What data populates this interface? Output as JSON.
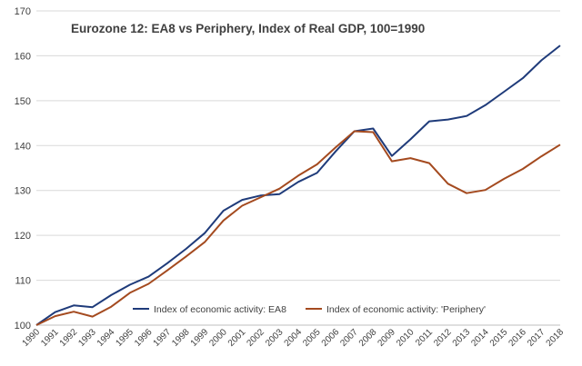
{
  "chart_data": {
    "type": "line",
    "title": "Eurozone 12: EA8 vs Periphery, Index of Real GDP, 100=1990",
    "xlabel": "",
    "ylabel": "",
    "ylim": [
      100,
      170
    ],
    "yticks": [
      100,
      110,
      120,
      130,
      140,
      150,
      160,
      170
    ],
    "grid": true,
    "legend_position": "bottom-inside",
    "categories": [
      "1990",
      "1991",
      "1992",
      "1993",
      "1994",
      "1995",
      "1996",
      "1997",
      "1998",
      "1999",
      "2000",
      "2001",
      "2002",
      "2003",
      "2004",
      "2005",
      "2006",
      "2007",
      "2008",
      "2009",
      "2010",
      "2011",
      "2012",
      "2013",
      "2014",
      "2015",
      "2016",
      "2017",
      "2018"
    ],
    "series": [
      {
        "name": "Index of economic activity: EA8",
        "color": "#1f3b7a",
        "values": [
          100,
          102.9,
          104.4,
          104.0,
          106.7,
          109.0,
          110.8,
          113.8,
          117.0,
          120.5,
          125.5,
          127.9,
          128.9,
          129.2,
          131.9,
          133.9,
          138.7,
          143.2,
          143.8,
          137.7,
          141.4,
          145.4,
          145.8,
          146.6,
          149.0,
          152.0,
          155.0,
          159.0,
          162.3
        ]
      },
      {
        "name": "Index of economic activity: 'Periphery'",
        "color": "#a44a1f",
        "values": [
          100,
          102.0,
          103.0,
          101.9,
          104.1,
          107.2,
          109.2,
          112.2,
          115.3,
          118.5,
          123.3,
          126.6,
          128.5,
          130.4,
          133.3,
          135.8,
          139.6,
          143.2,
          143.0,
          136.5,
          137.2,
          136.1,
          131.5,
          129.4,
          130.1,
          132.6,
          134.8,
          137.6,
          140.2
        ]
      }
    ]
  }
}
